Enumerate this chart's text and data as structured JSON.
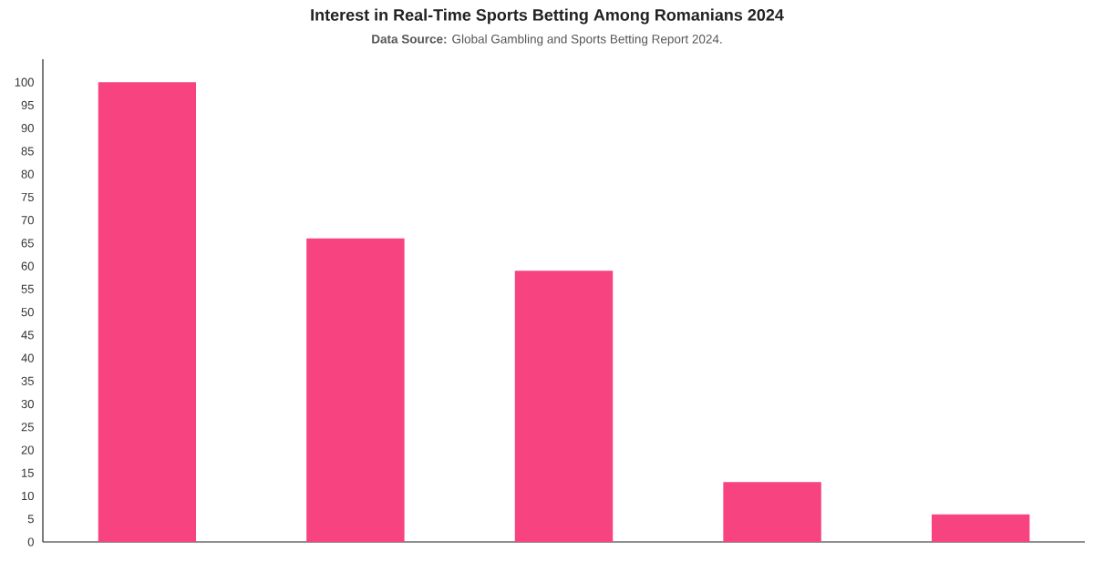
{
  "chart_data": {
    "type": "bar",
    "title": "Interest in Real-Time Sports Betting Among Romanians 2024",
    "subtitle": "**Data Source:** Global Gambling and Sports Betting Report 2024.",
    "categories": [
      null,
      null,
      null,
      null,
      null
    ],
    "values": [
      100,
      66,
      59,
      13,
      6
    ],
    "color": "#f7437f",
    "ylim": [
      0,
      105
    ],
    "yticks": [
      0,
      5,
      10,
      15,
      20,
      25,
      30,
      35,
      40,
      45,
      50,
      55,
      60,
      65,
      70,
      75,
      80,
      85,
      90,
      95,
      100
    ]
  }
}
